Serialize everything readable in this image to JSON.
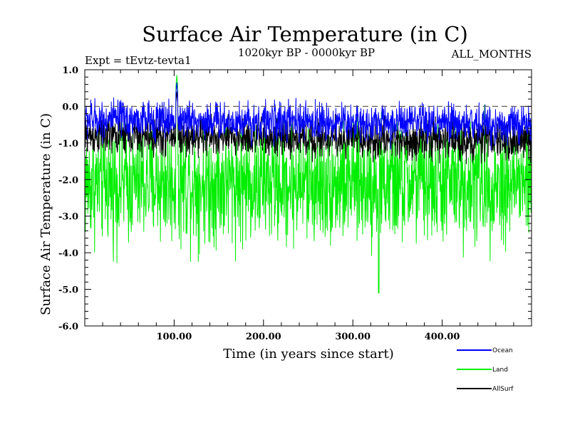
{
  "chart_data": {
    "type": "line",
    "title": "Surface Air Temperature (in C)",
    "subtitle_left": "Expt = tEvtz-tevta1",
    "subtitle_center": "1020kyr BP - 0000kyr BP",
    "subtitle_right": "ALL_MONTHS",
    "xlabel": "Time (in years since start)",
    "ylabel": "Surface Air Temperature (in C)",
    "xlim": [
      0,
      500
    ],
    "ylim": [
      -6.0,
      1.0
    ],
    "x_ticks": [
      100,
      200,
      300,
      400
    ],
    "x_tick_labels": [
      "100.00",
      "200.00",
      "300.00",
      "400.00"
    ],
    "y_ticks": [
      1.0,
      0.0,
      -1.0,
      -2.0,
      -3.0,
      -4.0,
      -5.0,
      -6.0
    ],
    "y_tick_labels": [
      "1.0",
      "0.0",
      "-1.0",
      "-2.0",
      "-3.0",
      "-4.0",
      "-5.0",
      "-6.0"
    ],
    "reference_line": {
      "y": 0.0,
      "style": "dashed"
    },
    "series": [
      {
        "name": "Land",
        "color": "#00ee00",
        "mean": -2.1,
        "amplitude": 1.4,
        "spike": {
          "x": 103,
          "y": 0.85
        },
        "min_value": -5.1
      },
      {
        "name": "AllSurf",
        "color": "#000000",
        "mean": -0.8,
        "amplitude": 0.45,
        "spike": {
          "x": 103,
          "y": 0.4
        }
      },
      {
        "name": "Ocean",
        "color": "#0000ff",
        "mean": -0.35,
        "amplitude": 0.45,
        "spike": {
          "x": 103,
          "y": 0.65
        }
      }
    ],
    "legend": [
      "Ocean",
      "Land",
      "AllSurf"
    ],
    "legend_position": "bottom-right"
  }
}
